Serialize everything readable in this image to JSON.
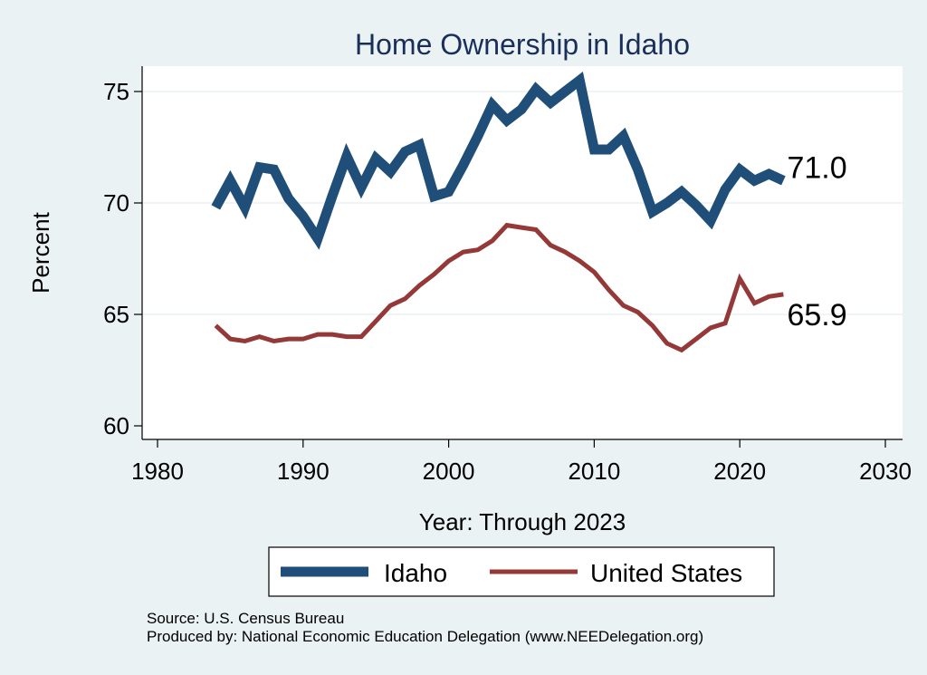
{
  "chart_data": {
    "type": "line",
    "title": "Home Ownership in Idaho",
    "xlabel": "Year: Through 2023",
    "ylabel": "Percent",
    "xlim": [
      1980,
      2030
    ],
    "ylim": [
      60,
      76
    ],
    "xticks": [
      1980,
      1990,
      2000,
      2010,
      2020,
      2030
    ],
    "yticks": [
      60,
      65,
      70,
      75
    ],
    "grid": "horizontal",
    "legend": "bottom",
    "x": [
      1984,
      1985,
      1986,
      1987,
      1988,
      1989,
      1990,
      1991,
      1992,
      1993,
      1994,
      1995,
      1996,
      1997,
      1998,
      1999,
      2000,
      2001,
      2002,
      2003,
      2004,
      2005,
      2006,
      2007,
      2008,
      2009,
      2010,
      2011,
      2012,
      2013,
      2014,
      2015,
      2016,
      2017,
      2018,
      2019,
      2020,
      2021,
      2022,
      2023
    ],
    "series": [
      {
        "name": "Idaho",
        "color": "#1f4e79",
        "end_label": "71.0",
        "values": [
          69.8,
          71.0,
          69.8,
          71.6,
          71.5,
          70.2,
          69.4,
          68.4,
          70.3,
          72.1,
          70.7,
          72.0,
          71.4,
          72.3,
          72.6,
          70.3,
          70.5,
          71.7,
          73.0,
          74.4,
          73.7,
          74.2,
          75.1,
          74.5,
          75.0,
          75.5,
          72.4,
          72.4,
          73.0,
          71.5,
          69.6,
          70.0,
          70.5,
          69.9,
          69.2,
          70.6,
          71.5,
          71.0,
          71.3,
          71.0
        ]
      },
      {
        "name": "United States",
        "color": "#943838",
        "end_label": "65.9",
        "values": [
          64.5,
          63.9,
          63.8,
          64.0,
          63.8,
          63.9,
          63.9,
          64.1,
          64.1,
          64.0,
          64.0,
          64.7,
          65.4,
          65.7,
          66.3,
          66.8,
          67.4,
          67.8,
          67.9,
          68.3,
          69.0,
          68.9,
          68.8,
          68.1,
          67.8,
          67.4,
          66.9,
          66.1,
          65.4,
          65.1,
          64.5,
          63.7,
          63.4,
          63.9,
          64.4,
          64.6,
          66.6,
          65.5,
          65.8,
          65.9
        ]
      }
    ]
  },
  "notes": {
    "source": "Source: U.S. Census Bureau",
    "produced_by": "Produced by: National Economic Education Delegation (www.NEEDelegation.org)"
  }
}
